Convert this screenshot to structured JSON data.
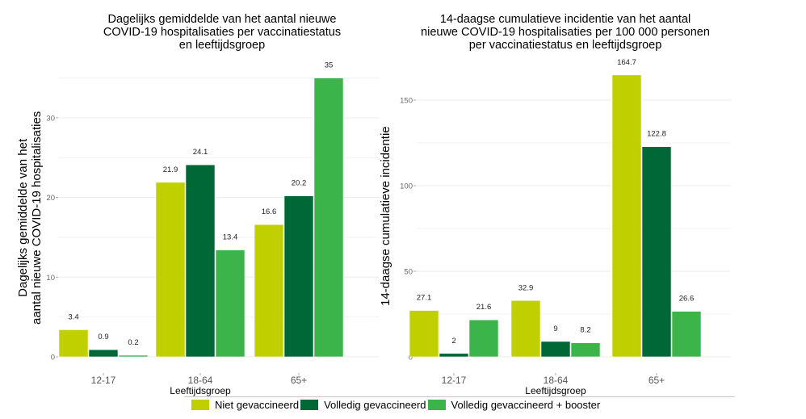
{
  "colors": {
    "niet": "#bfcf00",
    "volledig": "#006837",
    "booster": "#3bb54a",
    "grid": "#ececec",
    "tick_text": "#666666"
  },
  "legend": {
    "items": [
      {
        "label": "Niet gevaccineerd",
        "color_key": "niet"
      },
      {
        "label": "Volledig gevaccineerd",
        "color_key": "volledig"
      },
      {
        "label": "Volledig gevaccineerd + booster",
        "color_key": "booster"
      }
    ]
  },
  "chart_data": [
    {
      "type": "bar",
      "title": "Dagelijks gemiddelde van het aantal nieuwe COVID-19 hospitalisaties per vaccinatiestatus en leeftijdsgroep",
      "title_lines": [
        "Dagelijks gemiddelde van het aantal nieuwe",
        "COVID-19 hospitalisaties per vaccinatiestatus",
        "en leeftijdsgroep"
      ],
      "xlabel": "Leeftijdsgroep",
      "ylabel": "Dagelijks gemiddelde van het aantal nieuwe COVID-19 hospitalisaties",
      "ylabel_lines": [
        "Dagelijks gemiddelde van het",
        "aantal nieuwe COVID-19 hospitalisaties"
      ],
      "categories": [
        "12-17",
        "18-64",
        "65+"
      ],
      "yticks": [
        0,
        10,
        20,
        30
      ],
      "ylim": [
        0,
        36.5
      ],
      "grid": true,
      "legend_position": "bottom",
      "series": [
        {
          "name": "Niet gevaccineerd",
          "color_key": "niet",
          "values": [
            3.4,
            21.9,
            16.6
          ],
          "labels": [
            "3.4",
            "21.9",
            "16.6"
          ]
        },
        {
          "name": "Volledig gevaccineerd",
          "color_key": "volledig",
          "values": [
            0.9,
            24.1,
            20.2
          ],
          "labels": [
            "0.9",
            "24.1",
            "20.2"
          ]
        },
        {
          "name": "Volledig gevaccineerd + booster",
          "color_key": "booster",
          "values": [
            0.2,
            13.4,
            35
          ],
          "labels": [
            "0.2",
            "13.4",
            "35"
          ]
        }
      ]
    },
    {
      "type": "bar",
      "title": "14-daagse cumulatieve incidentie van het aantal nieuwe COVID-19 hospitalisaties per 100 000 personen per vaccinatiestatus en leeftijdsgroep",
      "title_lines": [
        "14-daagse cumulatieve incidentie van het aantal",
        "nieuwe COVID-19 hospitalisaties per 100 000 personen",
        "per vaccinatiestatus en leeftijdsgroep"
      ],
      "xlabel": "Leeftijdsgroep",
      "ylabel": "14-daagse cumulatieve incidentie",
      "ylabel_lines": [
        "14-daagse cumulatieve incidentie"
      ],
      "categories": [
        "12-17",
        "18-64",
        "65+"
      ],
      "yticks": [
        0,
        50,
        100,
        150
      ],
      "ylim": [
        0,
        172
      ],
      "grid": true,
      "legend_position": "bottom",
      "series": [
        {
          "name": "Niet gevaccineerd",
          "color_key": "niet",
          "values": [
            27.1,
            32.9,
            164.7
          ],
          "labels": [
            "27.1",
            "32.9",
            "164.7"
          ]
        },
        {
          "name": "Volledig gevaccineerd",
          "color_key": "volledig",
          "values": [
            2,
            9,
            122.8
          ],
          "labels": [
            "2",
            "9",
            "122.8"
          ]
        },
        {
          "name": "Volledig gevaccineerd + booster",
          "color_key": "booster",
          "values": [
            21.6,
            8.2,
            26.6
          ],
          "labels": [
            "21.6",
            "8.2",
            "26.6"
          ]
        }
      ]
    }
  ]
}
